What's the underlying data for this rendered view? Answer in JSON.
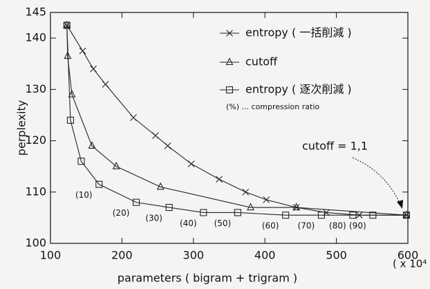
{
  "chart_data": {
    "type": "line",
    "xlabel": "parameters ( bigram + trigram )",
    "ylabel": "perplexity",
    "x_unit": "( x 10⁴ )",
    "xlim": [
      100,
      600
    ],
    "ylim": [
      100,
      145
    ],
    "xticks": [
      100,
      200,
      300,
      400,
      500,
      600
    ],
    "yticks": [
      100,
      110,
      120,
      130,
      140,
      145
    ],
    "legend_note": "(%) ... compression ratio",
    "series": [
      {
        "name": "entropy ( 一括削減 )",
        "marker": "x",
        "color": "#222",
        "x": [
          123,
          145,
          160,
          177,
          216,
          247,
          264,
          297,
          336,
          373,
          402,
          444,
          486,
          532,
          598
        ],
        "values": [
          142.5,
          137.5,
          134,
          131,
          124.5,
          121,
          119,
          115.5,
          112.5,
          110,
          108.5,
          107,
          106,
          105.5,
          105.5
        ]
      },
      {
        "name": "cutoff",
        "marker": "triangle",
        "color": "#222",
        "x": [
          123,
          124,
          130,
          158,
          192,
          254,
          380,
          444,
          598
        ],
        "values": [
          142.5,
          136.5,
          129,
          119,
          115,
          111,
          107,
          107,
          105.5
        ]
      },
      {
        "name": "entropy ( 逐次削減 )",
        "marker": "square",
        "color": "#222",
        "x": [
          123,
          128,
          143,
          168,
          220,
          266,
          314,
          362,
          429,
          479,
          523,
          551,
          598
        ],
        "values": [
          142.5,
          124,
          116,
          111.5,
          108,
          107,
          106,
          106,
          105.5,
          105.5,
          105.5,
          105.5,
          105.5
        ]
      }
    ],
    "point_labels": [
      "(10)",
      "(20)",
      "(30)",
      "(40)",
      "(50)",
      "(60)",
      "(70)",
      "(80)",
      "(90)"
    ],
    "annotation": "cutoff = 1,1"
  }
}
